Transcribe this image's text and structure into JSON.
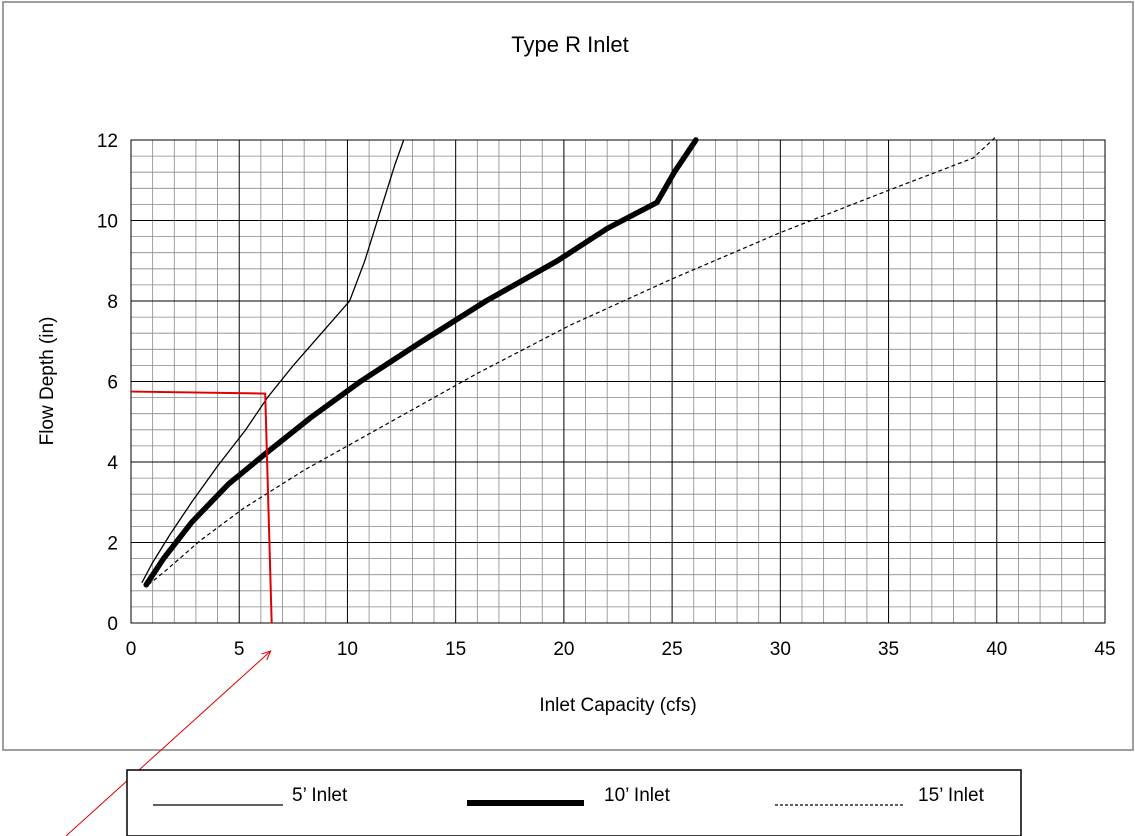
{
  "chart_data": {
    "type": "line",
    "title": "Type R Inlet",
    "xlabel": "Inlet Capacity (cfs)",
    "ylabel": "Flow Depth (in)",
    "xlim": [
      0,
      45
    ],
    "ylim": [
      0,
      12
    ],
    "x_major_ticks": [
      0,
      5,
      10,
      15,
      20,
      25,
      30,
      35,
      40,
      45
    ],
    "x_tick_labels": [
      "0",
      "5",
      "10",
      "15",
      "20",
      "25",
      "30",
      "35",
      "40",
      "45"
    ],
    "y_major_ticks": [
      0,
      2,
      4,
      6,
      8,
      10,
      12
    ],
    "y_tick_labels": [
      "0",
      "2",
      "4",
      "6",
      "8",
      "10",
      "12"
    ],
    "x_minor_step": 1,
    "y_minor_step": 0.4,
    "grid": true,
    "legend_position": "bottom",
    "series": [
      {
        "name": "5' Inlet",
        "style": "thin",
        "color": "#000000",
        "points": [
          [
            0.5,
            1.0
          ],
          [
            1.0,
            1.5
          ],
          [
            1.8,
            2.2
          ],
          [
            2.8,
            3.0
          ],
          [
            4.0,
            3.9
          ],
          [
            5.3,
            4.8
          ],
          [
            6.3,
            5.6
          ],
          [
            7.5,
            6.4
          ],
          [
            8.8,
            7.2
          ],
          [
            10.1,
            8.0
          ],
          [
            10.8,
            9.0
          ],
          [
            11.5,
            10.2
          ],
          [
            12.2,
            11.4
          ],
          [
            12.6,
            12.0
          ]
        ]
      },
      {
        "name": "10' Inlet",
        "style": "thick",
        "color": "#000000",
        "points": [
          [
            0.7,
            0.95
          ],
          [
            1.5,
            1.6
          ],
          [
            2.8,
            2.5
          ],
          [
            4.5,
            3.45
          ],
          [
            6.2,
            4.2
          ],
          [
            8.3,
            5.1
          ],
          [
            10.6,
            6.0
          ],
          [
            13.3,
            6.95
          ],
          [
            16.4,
            8.0
          ],
          [
            19.7,
            9.0
          ],
          [
            22.0,
            9.8
          ],
          [
            24.3,
            10.45
          ],
          [
            25.1,
            11.2
          ],
          [
            26.1,
            12.0
          ]
        ]
      },
      {
        "name": "15' Inlet",
        "style": "dashed",
        "color": "#000000",
        "points": [
          [
            0.8,
            0.95
          ],
          [
            1.6,
            1.3
          ],
          [
            3.2,
            2.05
          ],
          [
            5.2,
            2.85
          ],
          [
            8.0,
            3.8
          ],
          [
            12.0,
            5.0
          ],
          [
            16.0,
            6.2
          ],
          [
            20.3,
            7.4
          ],
          [
            25.0,
            8.55
          ],
          [
            30.0,
            9.7
          ],
          [
            35.0,
            10.75
          ],
          [
            38.9,
            11.55
          ],
          [
            40.0,
            12.1
          ]
        ]
      }
    ],
    "annotation": {
      "color": "#e00000",
      "y_read_value": 5.75,
      "corner_x": 6.2,
      "corner_y": 5.7,
      "x_read_value": 6.5
    }
  },
  "legend": {
    "items": [
      {
        "label": "5’ Inlet",
        "style": "thin"
      },
      {
        "label": "10’ Inlet",
        "style": "thick"
      },
      {
        "label": "15’ Inlet",
        "style": "dashed"
      }
    ]
  }
}
